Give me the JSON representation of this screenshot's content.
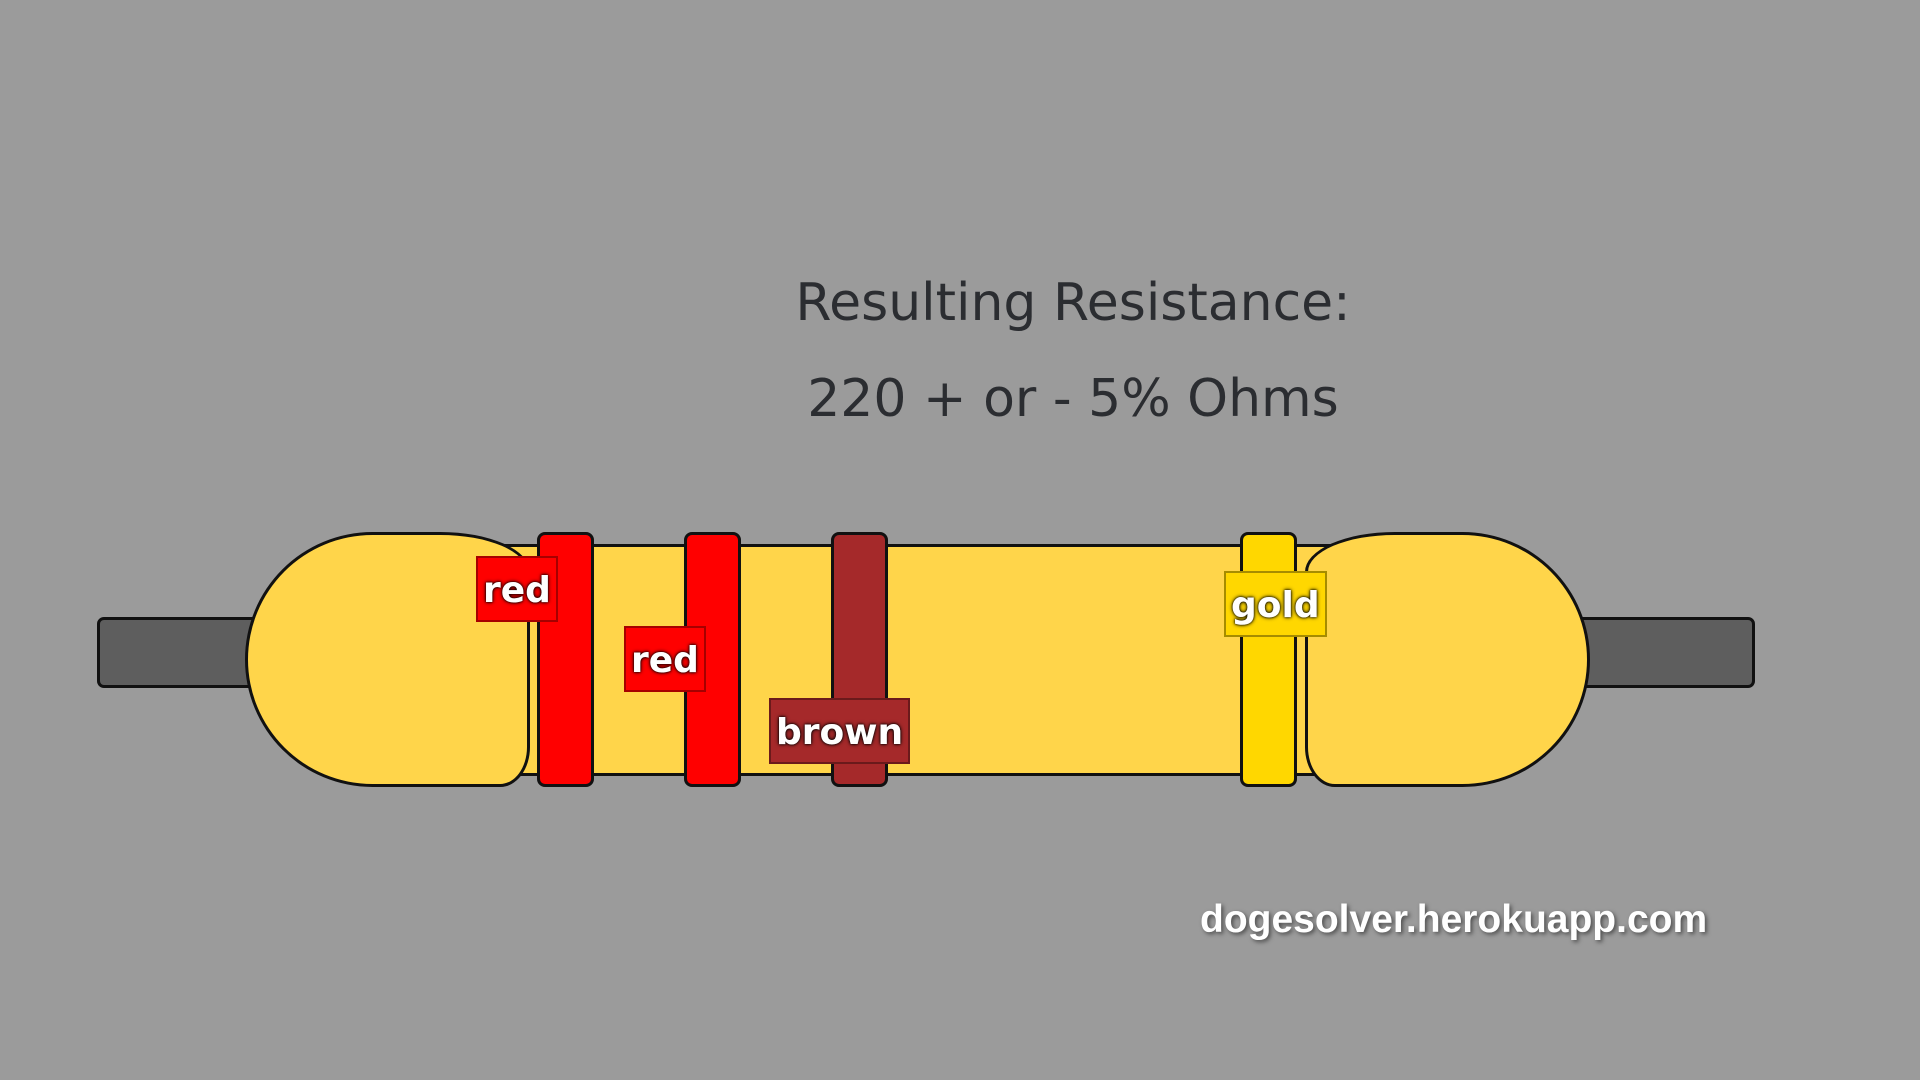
{
  "result": {
    "heading": "Resulting Resistance:",
    "value": "220 + or - 5% Ohms"
  },
  "resistor": {
    "body_color": "#ffd54a",
    "lead_color": "#5e5e5e",
    "bands": [
      {
        "label": "red",
        "color": "#ff0000"
      },
      {
        "label": "red",
        "color": "#ff0000"
      },
      {
        "label": "brown",
        "color": "#a5292a"
      },
      {
        "label": "gold",
        "color": "#ffd700"
      }
    ]
  },
  "watermark": "dogesolver.herokuapp.com"
}
